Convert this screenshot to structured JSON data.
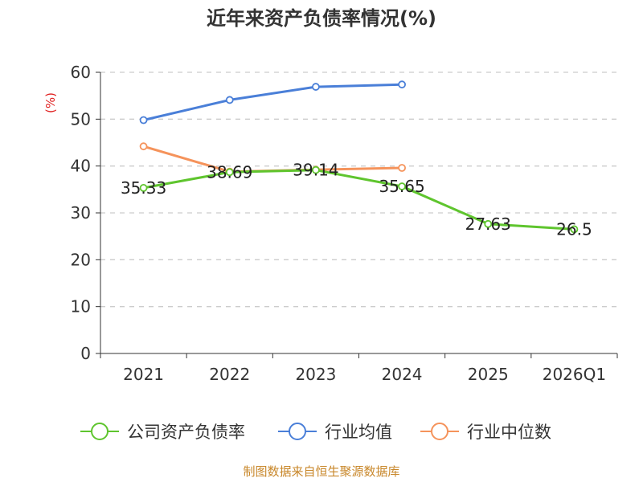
{
  "chart_data": {
    "type": "line",
    "title": "近年来资产负债率情况(%)",
    "ylabel": "(%)",
    "xlabel": "",
    "categories": [
      "2021",
      "2022",
      "2023",
      "2024",
      "2025",
      "2026Q1"
    ],
    "ylim": [
      0,
      60
    ],
    "yticks": [
      0,
      10,
      20,
      30,
      40,
      50,
      60
    ],
    "grid": true,
    "legend_position": "bottom",
    "series": [
      {
        "name": "公司资产负债率",
        "color": "#5fc52e",
        "values": [
          35.33,
          38.69,
          39.14,
          35.65,
          27.63,
          26.5
        ],
        "labels": [
          "35.33",
          "38.69",
          "39.14",
          "35.65",
          "27.63",
          "26.5"
        ]
      },
      {
        "name": "行业均值",
        "color": "#4a7fd8",
        "values": [
          49.8,
          54.1,
          56.9,
          57.4,
          null,
          null
        ]
      },
      {
        "name": "行业中位数",
        "color": "#f5935b",
        "values": [
          44.2,
          38.8,
          39.2,
          39.6,
          null,
          null
        ]
      }
    ],
    "source": "制图数据来自恒生聚源数据库"
  }
}
